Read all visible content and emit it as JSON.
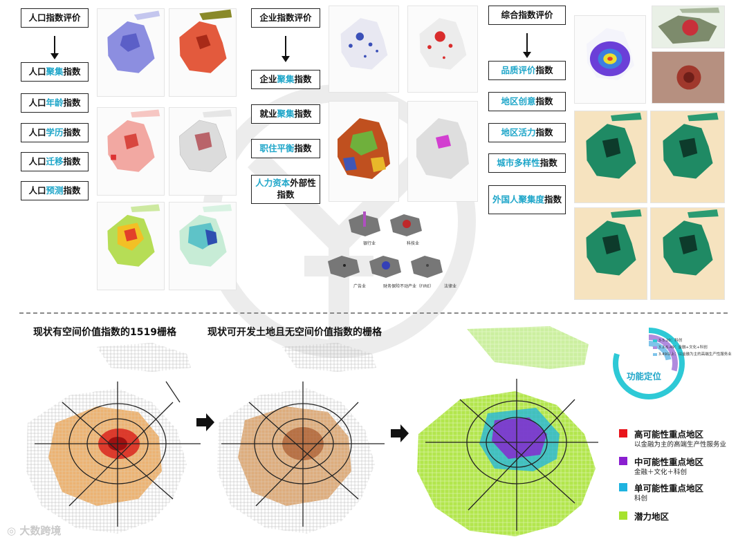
{
  "population": {
    "title": "人口指数评价",
    "items": [
      {
        "pre": "人口",
        "hl": "聚集",
        "post": "指数"
      },
      {
        "pre": "人口",
        "hl": "年龄",
        "post": "指数"
      },
      {
        "pre": "人口",
        "hl": "学历",
        "post": "指数"
      },
      {
        "pre": "人口",
        "hl": "迁移",
        "post": "指数"
      },
      {
        "pre": "人口",
        "hl": "预测",
        "post": "指数"
      }
    ]
  },
  "enterprise": {
    "title": "企业指数评价",
    "items": [
      {
        "pre": "企业",
        "hl": "聚集",
        "post": "指数"
      },
      {
        "pre": "就业",
        "hl": "聚集",
        "post": "指数"
      },
      {
        "pre": "",
        "hl": "职住平衡",
        "post": "指数"
      },
      {
        "pre": "",
        "hl": "人力资本",
        "post": "外部性指数"
      }
    ],
    "sectors": [
      "银行业",
      "科技业",
      "广告业",
      "财务保险不动产业（FIRE）",
      "法律业"
    ]
  },
  "composite": {
    "title": "综合指数评价",
    "items": [
      {
        "pre": "",
        "hl": "品质评价",
        "post": "指数"
      },
      {
        "pre": "",
        "hl": "地区创意",
        "post": "指数"
      },
      {
        "pre": "",
        "hl": "地区活力",
        "post": "指数"
      },
      {
        "pre": "",
        "hl": "城市多样性",
        "post": "指数"
      },
      {
        "pre": "",
        "hl": "外国人聚集度",
        "post": "指数"
      }
    ]
  },
  "bottom": {
    "title_left": "现状有空间价值指数的1519栅格",
    "title_mid": "现状可开发土地且无空间价值指数的栅格",
    "donut_label": "功能定位",
    "donut_legend": [
      "3-5.20：科创",
      "3.2-5.49：金融+文化+科创",
      "3.49以上：以金融为主的高端生产性服务业"
    ],
    "legend": [
      {
        "title": "高可能性重点地区",
        "sub": "以金融为主的高端生产性服务业",
        "color": "#e8141b"
      },
      {
        "title": "中可能性重点地区",
        "sub": "金融＋文化＋科创",
        "color": "#8a1fd0"
      },
      {
        "title": "单可能性重点地区",
        "sub": "科创",
        "color": "#1eb3e0"
      },
      {
        "title": "潜力地区",
        "sub": "",
        "color": "#a6e22e"
      }
    ]
  },
  "watermark": "大数跨境",
  "colors": {
    "accent": "#1fa6c9",
    "high": "#e8141b",
    "mid": "#8a1fd0",
    "single": "#1eb3e0",
    "potential": "#a6e22e",
    "orange": "#d8731d"
  }
}
